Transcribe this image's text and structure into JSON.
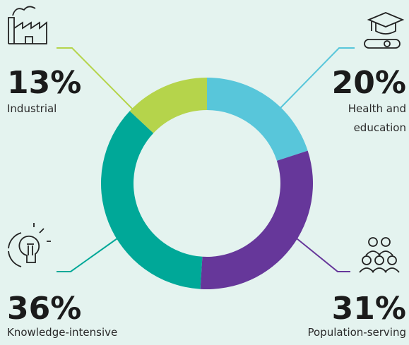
{
  "chart_data": {
    "type": "pie",
    "donut": true,
    "categories": [
      "Health and education",
      "Population-serving",
      "Knowledge-intensive",
      "Industrial"
    ],
    "values": [
      20,
      31,
      36,
      13
    ],
    "value_labels": [
      "20%",
      "31%",
      "36%",
      "13%"
    ],
    "colors": [
      "#58c6da",
      "#66379a",
      "#00a898",
      "#b5d44b"
    ]
  }
}
